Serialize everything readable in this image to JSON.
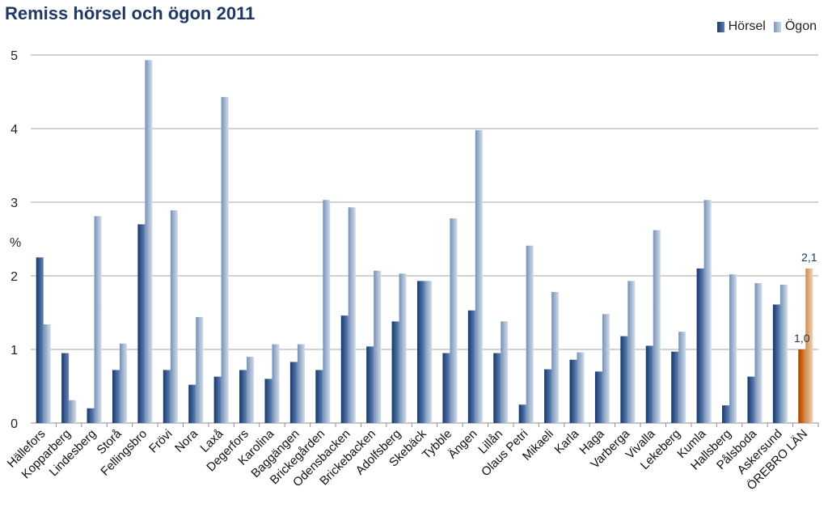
{
  "chart_data": {
    "type": "bar",
    "title": "Remiss hörsel och ögon 2011",
    "ylabel": "%",
    "xlabel": "",
    "ylim": [
      0,
      5
    ],
    "yticks": [
      "0",
      "1",
      "2",
      "3",
      "4",
      "5"
    ],
    "grid": true,
    "legend_position": "top-right",
    "categories": [
      "Hällefors",
      "Kopparberg",
      "Lindesberg",
      "Storå",
      "Fellingsbro",
      "Frövi",
      "Nora",
      "Laxå",
      "Degerfors",
      "Karolina",
      "Baggängen",
      "Brickegården",
      "Odensbacken",
      "Brickebacken",
      "Adolfsberg",
      "Skebäck",
      "Tybble",
      "Ängen",
      "Lillån",
      "Olaus Petri",
      "Mikaeli",
      "Karla",
      "Haga",
      "Varberga",
      "Vivalla",
      "Lekeberg",
      "Kumla",
      "Hallsberg",
      "Pålsboda",
      "Askersund",
      "ÖREBRO LÄN"
    ],
    "series": [
      {
        "name": "Hörsel",
        "color": "#2e4d7e",
        "values": [
          2.25,
          0.95,
          0.2,
          0.72,
          2.7,
          0.72,
          0.52,
          0.63,
          0.72,
          0.6,
          0.83,
          0.72,
          1.46,
          1.04,
          1.38,
          1.93,
          0.95,
          1.53,
          0.95,
          0.25,
          0.73,
          0.86,
          0.7,
          1.18,
          1.05,
          0.97,
          2.1,
          0.24,
          0.63,
          1.61,
          1.0
        ]
      },
      {
        "name": "Ögon",
        "color": "#95aac8",
        "values": [
          1.34,
          0.31,
          2.81,
          1.08,
          4.93,
          2.89,
          1.44,
          4.43,
          0.9,
          1.07,
          1.07,
          3.03,
          2.93,
          2.07,
          2.03,
          1.93,
          2.78,
          3.98,
          1.38,
          2.41,
          1.78,
          0.96,
          1.48,
          1.93,
          2.62,
          1.24,
          3.03,
          2.02,
          1.9,
          1.88,
          2.1
        ]
      }
    ],
    "highlight": {
      "category": "ÖREBRO LÄN",
      "colors": [
        "#c55a11",
        "#e4a875"
      ],
      "labels": [
        "1,0",
        "2,1"
      ]
    }
  }
}
